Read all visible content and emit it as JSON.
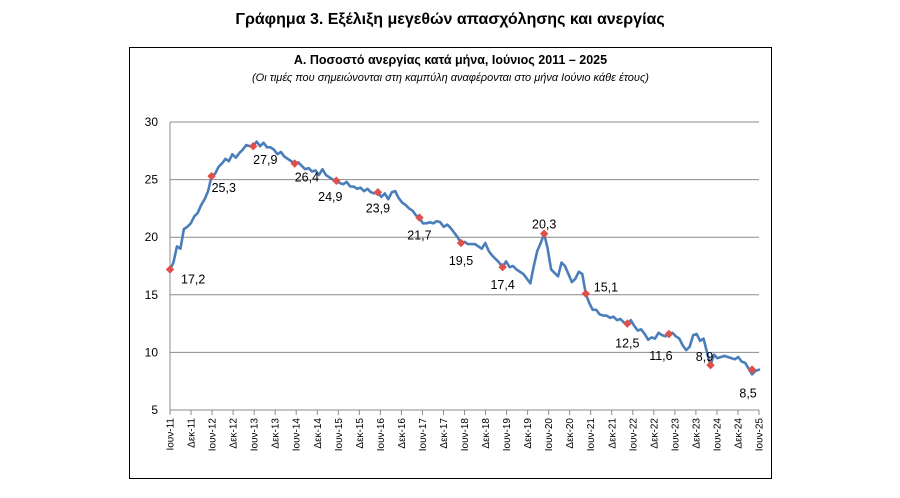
{
  "page_title": "Γράφημα 3. Εξέλιξη μεγεθών απασχόλησης και ανεργίας",
  "chart_data": {
    "type": "line",
    "title": "Α. Ποσοστό ανεργίας κατά μήνα, Ιούνιος 2011 – 2025",
    "subtitle": "(Οι τιμές που σημειώνονται στη καμπύλη αναφέρονται στο μήνα Ιούνιο κάθε έτους)",
    "xlabel": "",
    "ylabel": "",
    "ylim": [
      5,
      30
    ],
    "yticks": [
      5,
      10,
      15,
      20,
      25,
      30
    ],
    "grid": true,
    "line_color": "#4a7ebb",
    "marker_color": "#e0504a",
    "x_tick_labels": [
      "Ιουν-11",
      "Δεκ-11",
      "Ιουν-12",
      "Δεκ-12",
      "Ιουν-13",
      "Δεκ-13",
      "Ιουν-14",
      "Δεκ-14",
      "Ιουν-15",
      "Δεκ-15",
      "Ιουν-16",
      "Δεκ-16",
      "Ιουν-17",
      "Δεκ-17",
      "Ιουν-18",
      "Δεκ-18",
      "Ιουν-19",
      "Δεκ-19",
      "Ιουν-20",
      "Δεκ-20",
      "Ιουν-21",
      "Δεκ-21",
      "Ιουν-22",
      "Δεκ-22",
      "Ιουν-23",
      "Δεκ-23",
      "Ιουν-24",
      "Δεκ-24",
      "Ιουν-25"
    ],
    "series": [
      {
        "values": [
          17.2,
          17.8,
          19.2,
          19.0,
          20.7,
          20.9,
          21.2,
          21.8,
          22.1,
          22.8,
          23.3,
          24.0,
          25.3,
          25.5,
          26.1,
          26.4,
          26.8,
          26.6,
          27.2,
          26.9,
          27.3,
          27.6,
          28.0,
          27.9,
          27.9,
          28.3,
          27.9,
          28.2,
          27.8,
          27.8,
          27.6,
          27.2,
          27.4,
          27.0,
          26.8,
          26.6,
          26.4,
          26.5,
          26.2,
          25.9,
          26.0,
          25.7,
          25.8,
          25.4,
          25.9,
          25.4,
          25.2,
          25.0,
          24.9,
          24.7,
          24.6,
          24.8,
          24.4,
          24.4,
          24.2,
          24.3,
          24.0,
          24.2,
          23.9,
          23.8,
          23.9,
          23.5,
          23.8,
          23.3,
          23.9,
          24.0,
          23.4,
          23.0,
          22.8,
          22.5,
          22.3,
          21.9,
          21.7,
          21.2,
          21.2,
          21.3,
          21.2,
          21.4,
          21.3,
          20.9,
          21.1,
          20.8,
          20.4,
          20.0,
          19.5,
          19.6,
          19.4,
          19.4,
          19.4,
          19.2,
          19.0,
          19.5,
          18.8,
          18.4,
          18.1,
          17.8,
          17.4,
          17.9,
          17.4,
          17.5,
          17.2,
          17.0,
          16.8,
          16.4,
          16.0,
          17.5,
          18.8,
          19.5,
          20.3,
          19.0,
          17.2,
          16.9,
          16.6,
          17.8,
          17.5,
          16.8,
          16.1,
          16.4,
          17.0,
          16.8,
          15.1,
          14.3,
          13.7,
          13.7,
          13.3,
          13.2,
          13.2,
          13.0,
          13.1,
          12.8,
          12.9,
          12.6,
          12.5,
          12.8,
          12.3,
          11.9,
          12.0,
          11.6,
          11.1,
          11.3,
          11.2,
          11.7,
          11.5,
          11.4,
          11.6,
          11.7,
          11.4,
          11.2,
          10.6,
          10.2,
          10.5,
          11.5,
          11.6,
          11.0,
          11.2,
          10.0,
          8.9,
          9.8,
          9.5,
          9.6,
          9.7,
          9.6,
          9.5,
          9.4,
          9.6,
          9.2,
          9.1,
          8.6,
          8.1,
          8.4,
          8.5
        ]
      }
    ],
    "annotations": [
      {
        "value": 17.2,
        "label": "17,2"
      },
      {
        "value": 25.3,
        "label": "25,3"
      },
      {
        "value": 27.9,
        "label": "27,9"
      },
      {
        "value": 26.4,
        "label": "26,4"
      },
      {
        "value": 24.9,
        "label": "24,9"
      },
      {
        "value": 23.9,
        "label": "23,9"
      },
      {
        "value": 21.7,
        "label": "21,7"
      },
      {
        "value": 19.5,
        "label": "19,5"
      },
      {
        "value": 17.4,
        "label": "17,4"
      },
      {
        "value": 20.3,
        "label": "20,3"
      },
      {
        "value": 15.1,
        "label": "15,1"
      },
      {
        "value": 12.5,
        "label": "12,5"
      },
      {
        "value": 11.6,
        "label": "11,6"
      },
      {
        "value": 8.9,
        "label": "8,9"
      },
      {
        "value": 8.5,
        "label": "8,5"
      }
    ]
  }
}
